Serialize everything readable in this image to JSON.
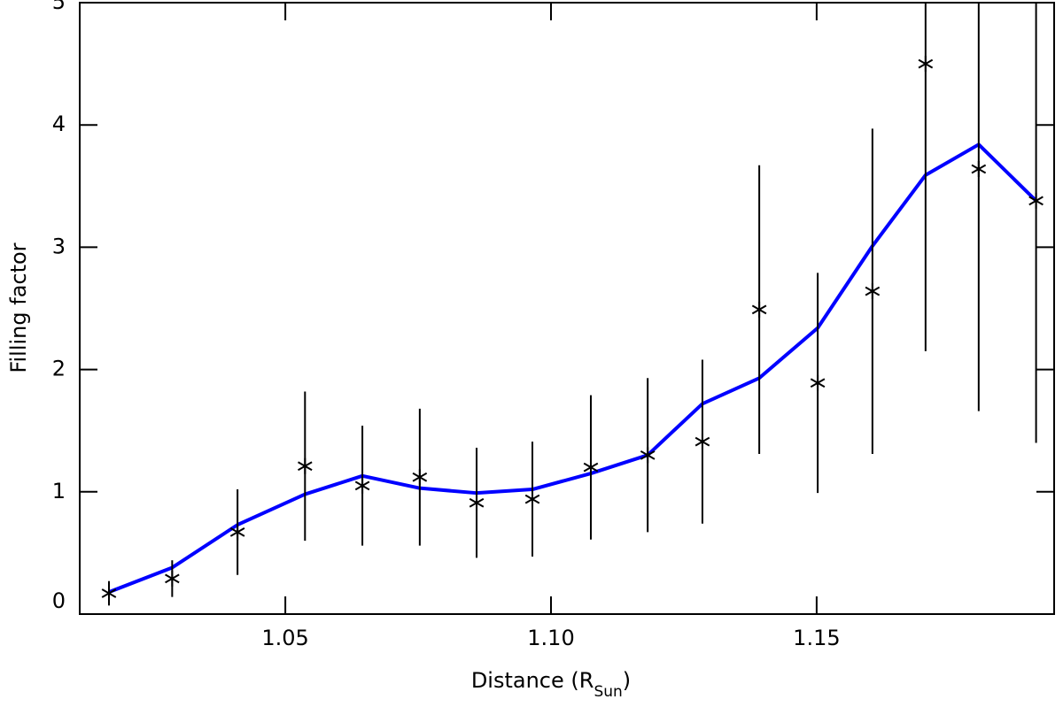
{
  "chart_data": {
    "type": "errorbar-line",
    "x_label": [
      "Distance (R",
      "Sun",
      ")"
    ],
    "y_label": "Filling factor",
    "x": [
      1.0168,
      1.0287,
      1.041,
      1.0537,
      1.0645,
      1.0753,
      1.086,
      1.0965,
      1.1075,
      1.1182,
      1.1285,
      1.1392,
      1.1502,
      1.1605,
      1.1705,
      1.1805,
      1.1913
    ],
    "series": [
      {
        "color": "#000000",
        "marker": "asterisk",
        "values": [
          0.17,
          0.29,
          0.67,
          1.21,
          1.05,
          1.12,
          0.91,
          0.94,
          1.2,
          1.3,
          1.41,
          2.49,
          1.89,
          2.64,
          4.5,
          3.64,
          3.38
        ],
        "errors": [
          0.1,
          0.15,
          0.35,
          0.61,
          0.49,
          0.56,
          0.45,
          0.47,
          0.59,
          0.63,
          0.67,
          1.18,
          0.9,
          1.33,
          2.35,
          1.98,
          1.98
        ]
      },
      {
        "color": "#0000ff",
        "values": [
          0.18,
          0.38,
          0.73,
          0.98,
          1.13,
          1.03,
          0.99,
          1.02,
          1.15,
          1.3,
          1.72,
          1.93,
          2.34,
          3.01,
          3.59,
          3.84,
          3.38
        ]
      }
    ],
    "xlim": [
      1.0113,
      1.1947
    ],
    "ylim": [
      0,
      5
    ],
    "xticks": [
      1.05,
      {
        "value": 1.1,
        "label": "1.10"
      },
      1.15
    ],
    "yticks": [
      0,
      1,
      2,
      3,
      4,
      5
    ]
  }
}
